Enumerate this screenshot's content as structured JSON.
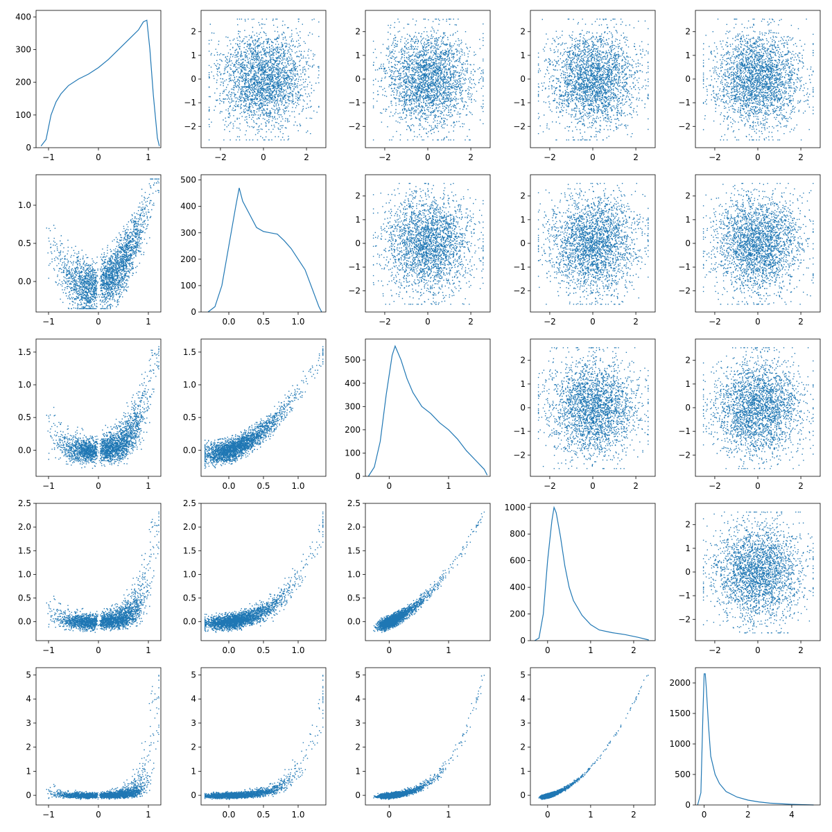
{
  "chart_data": {
    "type": "scatter",
    "layout": "5x5 pair plot (histograms on diagonal, scatter of transformed variables below diagonal, scatter of standard normal samples above diagonal)",
    "title": "",
    "xlabel": "",
    "ylabel": "",
    "grid": false,
    "legend": "none",
    "colors": {
      "series": "#1f77b4",
      "axes": "#000000",
      "background": "#ffffff"
    },
    "variables": [
      {
        "index": 0,
        "range": [
          -1.25,
          1.25
        ],
        "ticks": [
          "-1",
          "0",
          "1"
        ],
        "tick_values": [
          -1,
          0,
          1
        ]
      },
      {
        "index": 1,
        "range": [
          -0.4,
          1.4
        ],
        "ticks": [
          "0.0",
          "0.5",
          "1.0"
        ],
        "tick_values": [
          0,
          0.5,
          1.0
        ],
        "yticks": [
          "0.0",
          "0.5",
          "1.0"
        ],
        "ytick_values": [
          0,
          0.5,
          1.0
        ]
      },
      {
        "index": 2,
        "range": [
          -0.4,
          1.7
        ],
        "ticks": [
          "0",
          "1"
        ],
        "tick_values": [
          0,
          1
        ],
        "yticks": [
          "0.0",
          "0.5",
          "1.0",
          "1.5"
        ],
        "ytick_values": [
          0,
          0.5,
          1.0,
          1.5
        ]
      },
      {
        "index": 3,
        "range": [
          -0.4,
          2.5
        ],
        "ticks": [
          "0",
          "1",
          "2"
        ],
        "tick_values": [
          0,
          1,
          2
        ],
        "yticks": [
          "0.0",
          "0.5",
          "1.0",
          "1.5",
          "2.0",
          "2.5"
        ],
        "ytick_values": [
          0,
          0.5,
          1.0,
          1.5,
          2.0,
          2.5
        ]
      },
      {
        "index": 4,
        "range": [
          -0.4,
          5.3
        ],
        "ticks": [
          "0",
          "2",
          "4"
        ],
        "tick_values": [
          0,
          2,
          4
        ],
        "yticks": [
          "0",
          "1",
          "2",
          "3",
          "4",
          "5"
        ],
        "ytick_values": [
          0,
          1,
          2,
          3,
          4,
          5
        ]
      }
    ],
    "normal_panels": {
      "range": [
        -2.9,
        2.9
      ],
      "ticks": [
        "-2",
        "0",
        "2"
      ],
      "tick_values": [
        -2,
        0,
        2
      ],
      "yticks": [
        "-2",
        "-1",
        "0",
        "1",
        "2"
      ],
      "ytick_values": [
        -2,
        -1,
        0,
        1,
        2
      ]
    },
    "histograms": [
      {
        "variable": 0,
        "yticks": [
          "0",
          "100",
          "200",
          "300",
          "400"
        ],
        "ytick_values": [
          0,
          100,
          200,
          300,
          400
        ],
        "ylim": [
          0,
          420
        ],
        "x": [
          -1.15,
          -1.05,
          -0.95,
          -0.85,
          -0.75,
          -0.6,
          -0.4,
          -0.2,
          0,
          0.2,
          0.4,
          0.6,
          0.8,
          0.9,
          0.97,
          1.03,
          1.1,
          1.18,
          1.22
        ],
        "values": [
          5,
          25,
          100,
          140,
          165,
          190,
          210,
          225,
          245,
          270,
          300,
          330,
          360,
          385,
          390,
          300,
          160,
          30,
          5
        ]
      },
      {
        "variable": 1,
        "yticks": [
          "0",
          "100",
          "200",
          "300",
          "400",
          "500"
        ],
        "ytick_values": [
          0,
          100,
          200,
          300,
          400,
          500
        ],
        "ylim": [
          0,
          520
        ],
        "x": [
          -0.3,
          -0.2,
          -0.1,
          0,
          0.1,
          0.15,
          0.2,
          0.3,
          0.4,
          0.5,
          0.6,
          0.7,
          0.8,
          0.9,
          1.0,
          1.1,
          1.2,
          1.3,
          1.34
        ],
        "values": [
          0,
          20,
          100,
          250,
          400,
          470,
          420,
          370,
          320,
          305,
          300,
          295,
          270,
          240,
          200,
          160,
          90,
          20,
          0
        ]
      },
      {
        "variable": 2,
        "yticks": [
          "0",
          "100",
          "200",
          "300",
          "400",
          "500"
        ],
        "ytick_values": [
          0,
          100,
          200,
          300,
          400,
          500
        ],
        "ylim": [
          0,
          590
        ],
        "x": [
          -0.35,
          -0.25,
          -0.15,
          -0.05,
          0.05,
          0.1,
          0.2,
          0.3,
          0.4,
          0.55,
          0.7,
          0.85,
          1.0,
          1.15,
          1.3,
          1.45,
          1.6,
          1.65
        ],
        "values": [
          0,
          40,
          150,
          350,
          520,
          560,
          500,
          420,
          360,
          300,
          270,
          230,
          200,
          160,
          110,
          70,
          30,
          5
        ]
      },
      {
        "variable": 3,
        "yticks": [
          "0",
          "200",
          "400",
          "600",
          "800",
          "1000"
        ],
        "ytick_values": [
          0,
          200,
          400,
          600,
          800,
          1000
        ],
        "ylim": [
          0,
          1030
        ],
        "x": [
          -0.3,
          -0.2,
          -0.1,
          0,
          0.1,
          0.15,
          0.2,
          0.3,
          0.4,
          0.5,
          0.6,
          0.8,
          1.0,
          1.2,
          1.5,
          1.8,
          2.1,
          2.35
        ],
        "values": [
          0,
          20,
          200,
          600,
          900,
          1000,
          960,
          780,
          560,
          400,
          300,
          190,
          120,
          80,
          60,
          45,
          25,
          5
        ]
      },
      {
        "variable": 4,
        "yticks": [
          "0",
          "500",
          "1000",
          "1500",
          "2000"
        ],
        "ytick_values": [
          0,
          500,
          1000,
          1500,
          2000
        ],
        "ylim": [
          0,
          2250
        ],
        "x": [
          -0.3,
          -0.15,
          -0.05,
          0,
          0.05,
          0.1,
          0.2,
          0.3,
          0.5,
          0.7,
          1.0,
          1.5,
          2.0,
          2.5,
          3.0,
          4.0,
          5.0
        ],
        "values": [
          0,
          200,
          1600,
          2150,
          2150,
          1900,
          1300,
          800,
          500,
          350,
          220,
          130,
          80,
          50,
          30,
          10,
          0
        ]
      }
    ]
  }
}
